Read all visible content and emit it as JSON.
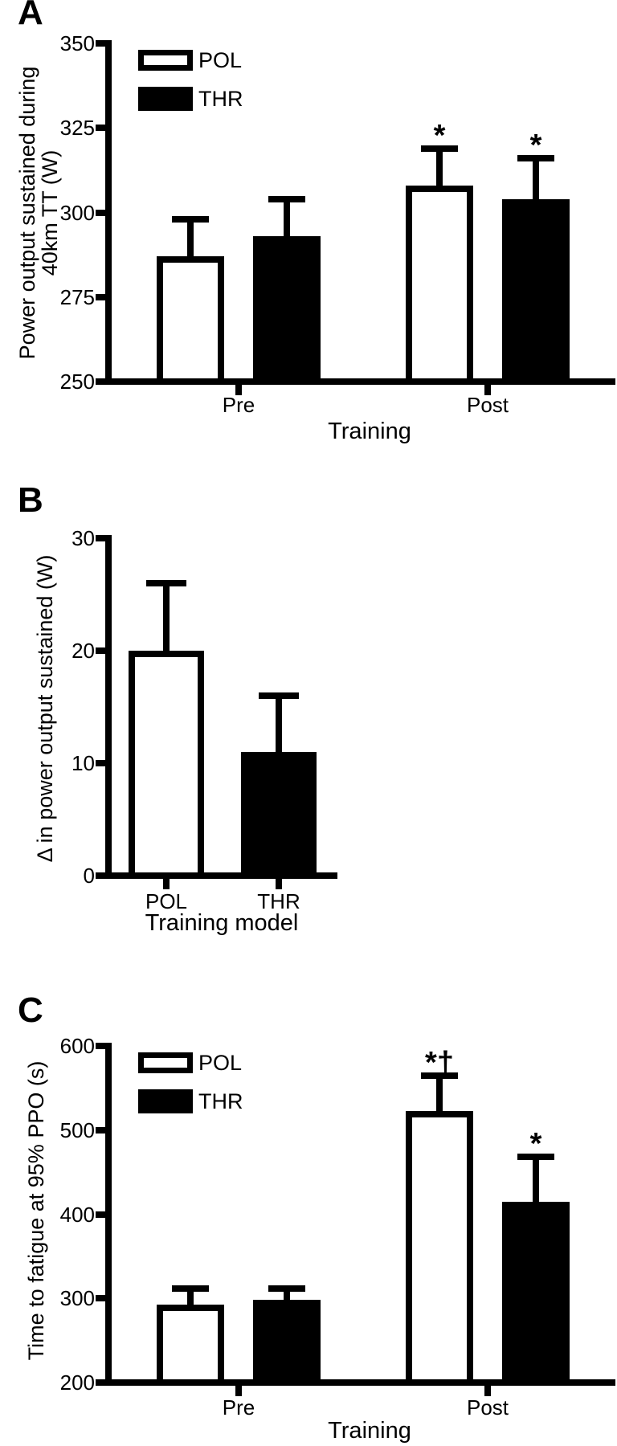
{
  "figure_background": "#ffffff",
  "ink_color": "#000000",
  "panels": [
    {
      "letter": "A",
      "chart_data": {
        "type": "bar",
        "title": "",
        "ylabel_lines": [
          "Power output sustained during",
          "40km TT (W)"
        ],
        "xlabel": "Training",
        "categories": [
          "Pre",
          "Post"
        ],
        "ylim": [
          250,
          350
        ],
        "yticks": [
          250,
          275,
          300,
          325,
          350
        ],
        "grid": false,
        "legend_position": "top-left",
        "legend": [
          "POL",
          "THR"
        ],
        "series": [
          {
            "name": "POL",
            "fill": "#ffffff",
            "values": [
              287,
              308
            ],
            "errors_plus": [
              11,
              11
            ],
            "sig": [
              "",
              "*"
            ]
          },
          {
            "name": "THR",
            "fill": "#000000",
            "values": [
              293,
              304
            ],
            "errors_plus": [
              11,
              12
            ],
            "sig": [
              "",
              "*"
            ]
          }
        ]
      }
    },
    {
      "letter": "B",
      "chart_data": {
        "type": "bar",
        "title": "",
        "ylabel": "Δ in power output sustained (W)",
        "xlabel": "Training model",
        "categories": [
          "POL",
          "THR"
        ],
        "ylim": [
          0,
          30
        ],
        "yticks": [
          0,
          10,
          20,
          30
        ],
        "grid": false,
        "legend": null,
        "series": [
          {
            "name": "POL",
            "fill": "#ffffff",
            "values": [
              20
            ],
            "errors_plus": [
              6
            ],
            "sig": [
              ""
            ]
          },
          {
            "name": "THR",
            "fill": "#000000",
            "values": [
              11
            ],
            "errors_plus": [
              5
            ],
            "sig": [
              ""
            ]
          }
        ]
      }
    },
    {
      "letter": "C",
      "chart_data": {
        "type": "bar",
        "title": "",
        "ylabel": "Time to fatigue at 95% PPO (s)",
        "xlabel": "Training",
        "categories": [
          "Pre",
          "Post"
        ],
        "ylim": [
          200,
          600
        ],
        "yticks": [
          200,
          300,
          400,
          500,
          600
        ],
        "grid": false,
        "legend_position": "top-left",
        "legend": [
          "POL",
          "THR"
        ],
        "series": [
          {
            "name": "POL",
            "fill": "#ffffff",
            "values": [
              293,
              523
            ],
            "errors_plus": [
              19,
              42
            ],
            "sig": [
              "",
              "*†"
            ]
          },
          {
            "name": "THR",
            "fill": "#000000",
            "values": [
              298,
              415
            ],
            "errors_plus": [
              14,
              53
            ],
            "sig": [
              "",
              "*"
            ]
          }
        ]
      }
    }
  ]
}
